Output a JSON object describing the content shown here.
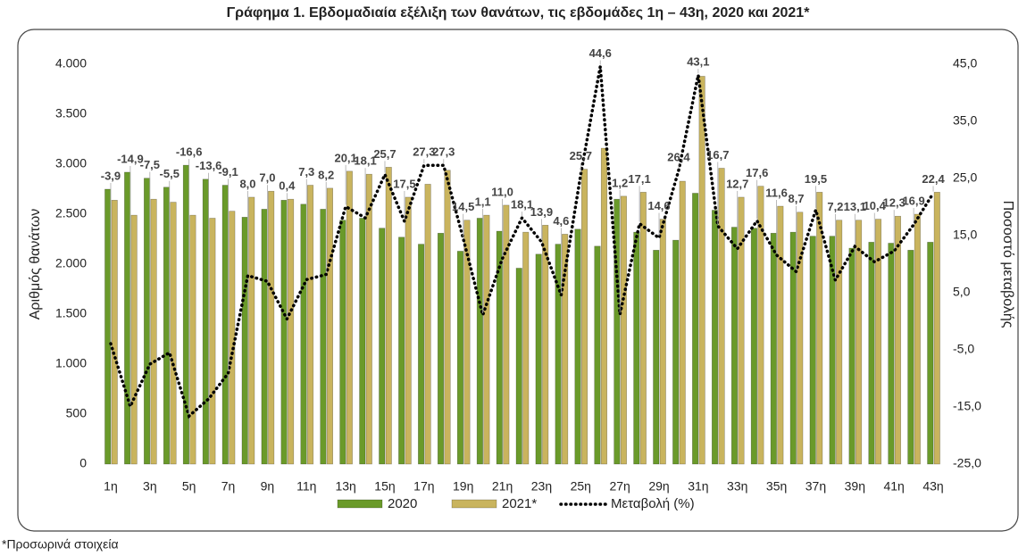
{
  "chart_data": {
    "type": "bar-line",
    "title": "Γράφημα 1.  Εβδομαδιαία εξέλιξη των θανάτων, τις εβδομάδες 1η – 43η, 2020 και 2021*",
    "ylabel": "Αριθμός θανάτων",
    "y2label": "Ποσοστό μεταβολής",
    "footnote": "*Προσωρινά στοιχεία",
    "categories": [
      "1η",
      null,
      "3η",
      null,
      "5η",
      null,
      "7η",
      null,
      "9η",
      null,
      "11η",
      null,
      "13η",
      null,
      "15η",
      null,
      "17η",
      null,
      "19η",
      null,
      "21η",
      null,
      "23η",
      null,
      "25η",
      null,
      "27η",
      null,
      "29η",
      null,
      "31η",
      null,
      "33η",
      null,
      "35η",
      null,
      "37η",
      null,
      "39η",
      null,
      "41η",
      null,
      "43η"
    ],
    "series": [
      {
        "name": "2020",
        "color": "#6a9a2a",
        "type": "bar",
        "values": [
          2750,
          2920,
          2860,
          2770,
          2990,
          2850,
          2790,
          2470,
          2550,
          2640,
          2600,
          2550,
          2440,
          2460,
          2360,
          2270,
          2200,
          2310,
          2130,
          2460,
          2330,
          1960,
          2100,
          2200,
          2350,
          2180,
          2650,
          2320,
          2140,
          2240,
          2710,
          2540,
          2370,
          2360,
          2310,
          2320,
          2280,
          2280,
          2160,
          2220,
          2210,
          2140,
          2220
        ]
      },
      {
        "name": "2021*",
        "color": "#c9b45e",
        "type": "bar",
        "values": [
          2640,
          2490,
          2650,
          2620,
          2490,
          2460,
          2530,
          2670,
          2730,
          2650,
          2790,
          2760,
          2930,
          2900,
          2970,
          2670,
          2800,
          2940,
          2440,
          2490,
          2590,
          2320,
          2390,
          2300,
          2950,
          3160,
          2680,
          2720,
          2450,
          2830,
          3880,
          2960,
          2670,
          2780,
          2580,
          2520,
          2720,
          2440,
          2440,
          2450,
          2480,
          2500,
          2720
        ]
      },
      {
        "name": "Μεταβολή (%)",
        "color": "#000000",
        "type": "line",
        "axis": "y2",
        "values": [
          -3.9,
          -14.9,
          -7.5,
          -5.5,
          -16.6,
          -13.6,
          -9.1,
          8.0,
          7.0,
          0.4,
          7.3,
          8.2,
          20.1,
          18.1,
          25.7,
          17.5,
          27.3,
          27.3,
          14.5,
          1.1,
          11.0,
          18.1,
          13.9,
          4.6,
          25.7,
          44.6,
          1.2,
          17.1,
          14.6,
          26.4,
          43.1,
          16.7,
          12.7,
          17.6,
          11.6,
          8.7,
          19.5,
          7.2,
          13.1,
          10.4,
          12.3,
          16.9,
          22.4
        ],
        "value_labels": [
          "-3,9",
          "-14,9",
          "-7,5",
          "-5,5",
          "-16,6",
          "-13,6",
          "-9,1",
          "8,0",
          "7,0",
          "0,4",
          "7,3",
          "8,2",
          "20,1",
          "18,1",
          "25,7",
          "17,5",
          "27,3",
          "27,3",
          "14,5",
          "1,1",
          "11,0",
          "18,1",
          "13,9",
          "4,6",
          "25,7",
          "44,6",
          "1,2",
          "17,1",
          "14,6",
          "26,4",
          "43,1",
          "16,7",
          "12,7",
          "17,6",
          "11,6",
          "8,7",
          "19,5",
          "7,2",
          "13,1",
          "10,4",
          "12,3",
          "16,9",
          "22,4"
        ]
      }
    ],
    "ylim": [
      0,
      4000
    ],
    "yticks": [
      0,
      500,
      {
        "value": 1000,
        "label": "1.000"
      },
      {
        "value": 1500,
        "label": "1.500"
      },
      {
        "value": 2000,
        "label": "2.000"
      },
      {
        "value": 2500,
        "label": "2.500"
      },
      {
        "value": 3000,
        "label": "3.000"
      },
      {
        "value": 3500,
        "label": "3.500"
      },
      {
        "value": 4000,
        "label": "4.000"
      }
    ],
    "y2lim": [
      -25,
      45
    ],
    "y2ticks": [
      {
        "value": -25,
        "label": "-25,0"
      },
      {
        "value": -15,
        "label": "-15,0"
      },
      {
        "value": -5,
        "label": "-5,0"
      },
      {
        "value": 5,
        "label": "5,0"
      },
      {
        "value": 15,
        "label": "15,0"
      },
      {
        "value": 25,
        "label": "25,0"
      },
      {
        "value": 35,
        "label": "35,0"
      },
      {
        "value": 45,
        "label": "45,0"
      }
    ],
    "legend": "bottom"
  }
}
